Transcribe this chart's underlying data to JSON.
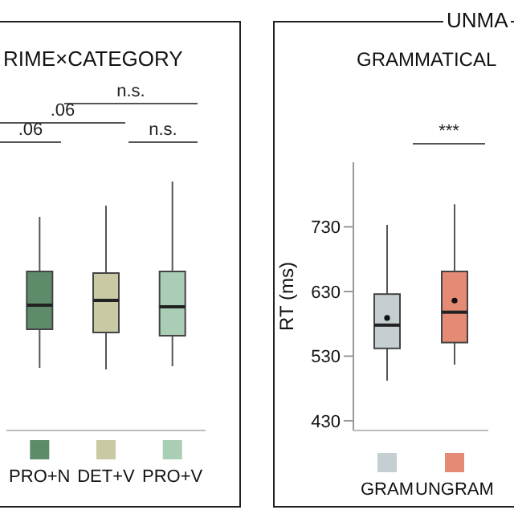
{
  "chart_data": [
    {
      "type": "other",
      "title": "RIME×CATEGORY",
      "categories": [
        "PRO+N",
        "DET+V",
        "PRO+V"
      ],
      "colors": [
        "#5e8c6a",
        "#c9c9a3",
        "#a9cdb5"
      ],
      "annotations": [
        "n.s.",
        ".06",
        ".06",
        "n.s."
      ]
    },
    {
      "type": "box",
      "title": "UNMA",
      "subtitle": "GRAMMATICAL",
      "ylabel": "RT (ms)",
      "categories": [
        "GRAM",
        "UNGRAM"
      ],
      "colors": [
        "#c5cfd2",
        "#e58a74"
      ],
      "ylim": [
        415,
        830
      ],
      "yticks": [
        430,
        530,
        630,
        730
      ],
      "boxes": [
        {
          "low": 492,
          "q1": 542,
          "median": 578,
          "q3": 626,
          "high": 733,
          "mean": 589
        },
        {
          "low": 517,
          "q1": 551,
          "median": 598,
          "q3": 661,
          "high": 765,
          "mean": 616
        }
      ],
      "annotations": [
        "***"
      ]
    }
  ]
}
